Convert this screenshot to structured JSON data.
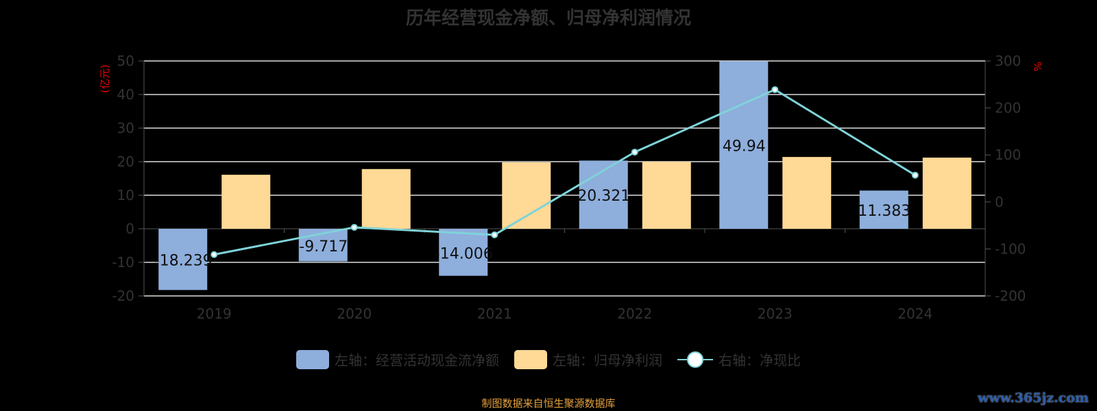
{
  "chart_data": {
    "type": "bar",
    "title": "历年经营现金净额、归母净利润情况",
    "categories": [
      "2019",
      "2020",
      "2021",
      "2022",
      "2023",
      "2024"
    ],
    "left_axis": {
      "label": "(亿元)",
      "range": [
        -20,
        50
      ],
      "ticks": [
        -20,
        -10,
        0,
        10,
        20,
        30,
        40,
        50
      ]
    },
    "right_axis": {
      "label": "%",
      "range": [
        -200,
        300
      ],
      "ticks": [
        -200,
        -100,
        0,
        100,
        200,
        300
      ]
    },
    "series": [
      {
        "name": "左轴：经营活动现金流净额",
        "type": "bar",
        "axis": "left",
        "color": "#8eaedc",
        "values": [
          -18.239,
          -9.717,
          -14.006,
          20.321,
          49.94,
          11.383
        ],
        "labels": [
          "-18.239",
          "-9.717",
          "-14.006",
          "20.321",
          "49.94",
          "11.383"
        ]
      },
      {
        "name": "左轴：归母净利润",
        "type": "bar",
        "axis": "left",
        "color": "#ffd996",
        "values": [
          16.1,
          17.8,
          19.8,
          20.0,
          21.4,
          21.2
        ]
      },
      {
        "name": "右轴：净现比",
        "type": "line",
        "axis": "right",
        "color": "#7fd3d8",
        "values": [
          -112,
          -54,
          -70,
          106,
          239,
          57
        ]
      }
    ],
    "grid": true,
    "legend_position": "bottom"
  },
  "source": "制图数据来自恒生聚源数据库",
  "watermark": "www.365jz.com"
}
